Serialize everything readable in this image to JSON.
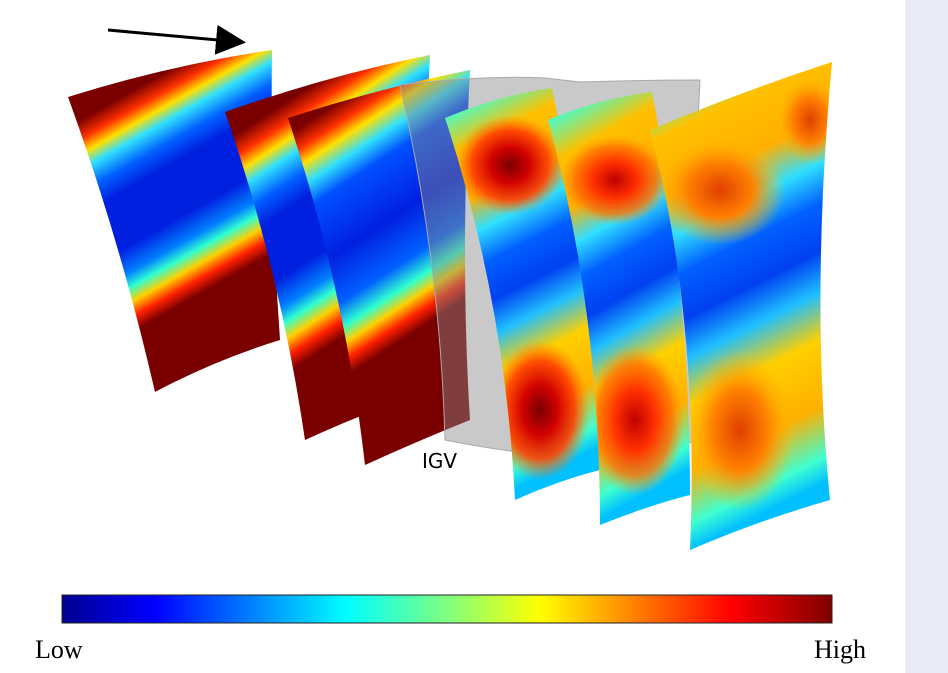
{
  "figure": {
    "label": "IGV",
    "colorbar": {
      "low": "Low",
      "high": "High"
    }
  }
}
